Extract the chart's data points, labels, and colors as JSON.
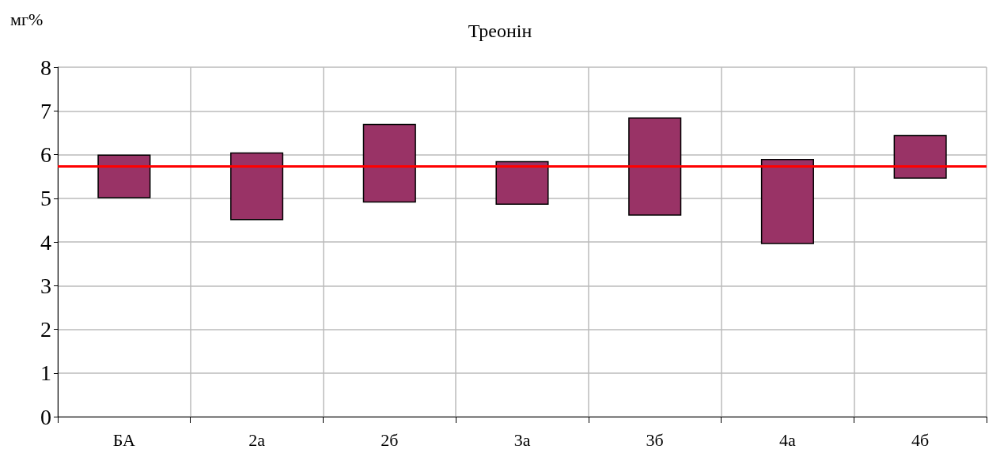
{
  "chart_data": {
    "type": "bar",
    "title": "Треонін",
    "ylabel": "мг%",
    "categories": [
      "БА",
      "2а",
      "2б",
      "3а",
      "3б",
      "4а",
      "4б"
    ],
    "base": [
      5.0,
      4.5,
      4.9,
      4.85,
      4.6,
      3.95,
      5.45
    ],
    "values": [
      1.0,
      1.55,
      1.8,
      1.0,
      2.25,
      1.95,
      1.0
    ],
    "color": "#993366",
    "ylim": [
      0,
      8
    ],
    "yticks": [
      0,
      1,
      2,
      3,
      4,
      5,
      6,
      7,
      8
    ],
    "grid": true,
    "ref_lines": [
      {
        "axis": "y",
        "value": 5.73,
        "label": null,
        "color": "#ff0000"
      }
    ]
  }
}
